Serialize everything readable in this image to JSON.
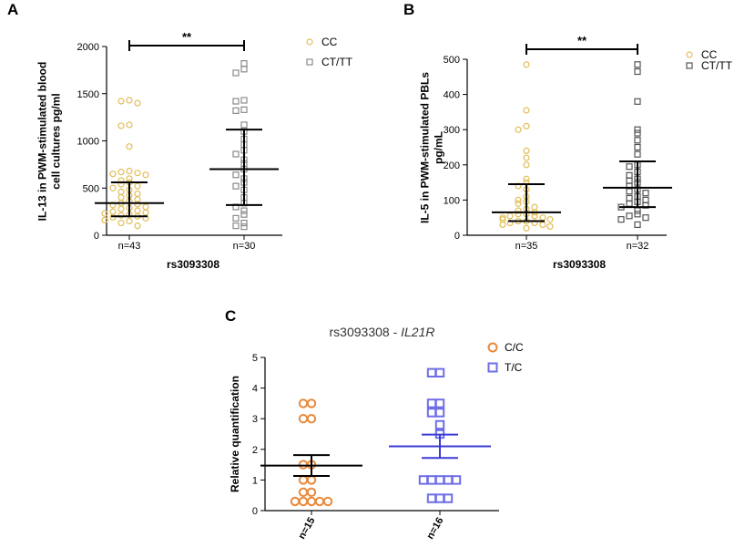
{
  "chart_data": [
    {
      "panel": "A",
      "type": "scatter",
      "title": "",
      "ylabel_lines": [
        "IL-13 in PWM-stimulated blood",
        "cell cultures pg/ml"
      ],
      "xlabel": "rs3093308",
      "ylim": [
        0,
        2000
      ],
      "yticks": [
        0,
        500,
        1000,
        1500,
        2000
      ],
      "categories": [
        "n=43",
        "n=30"
      ],
      "significance": "**",
      "series": [
        {
          "name": "CC",
          "color": "#e2bd56",
          "marker": "circle",
          "values": [
            1430,
            1420,
            1400,
            1170,
            1160,
            940,
            680,
            670,
            660,
            650,
            640,
            600,
            580,
            560,
            540,
            520,
            500,
            480,
            460,
            440,
            420,
            400,
            380,
            360,
            340,
            330,
            320,
            300,
            290,
            280,
            260,
            250,
            240,
            230,
            220,
            210,
            200,
            190,
            180,
            160,
            150,
            130,
            100
          ],
          "mean": 340,
          "err_low": 200,
          "err_high": 560
        },
        {
          "name": "CT/TT",
          "color": "#8a8a8a",
          "marker": "square",
          "values": [
            1820,
            1760,
            1720,
            1430,
            1420,
            1330,
            1320,
            1170,
            1100,
            1020,
            960,
            900,
            860,
            800,
            760,
            700,
            640,
            600,
            560,
            520,
            480,
            400,
            340,
            300,
            260,
            220,
            180,
            130,
            100,
            90
          ],
          "mean": 700,
          "err_low": 320,
          "err_high": 1120
        }
      ]
    },
    {
      "panel": "B",
      "type": "scatter",
      "title": "",
      "ylabel_lines": [
        "IL-5 in PWM-stimulated PBLs",
        "pg/mL"
      ],
      "xlabel": "rs3093308",
      "ylim": [
        0,
        500
      ],
      "yticks": [
        0,
        100,
        200,
        300,
        400,
        500
      ],
      "categories": [
        "n=35",
        "n=32"
      ],
      "significance": "**",
      "series": [
        {
          "name": "CC",
          "color": "#e2bd56",
          "marker": "circle",
          "values": [
            485,
            355,
            310,
            300,
            240,
            220,
            200,
            160,
            150,
            140,
            130,
            110,
            100,
            95,
            90,
            80,
            75,
            70,
            65,
            60,
            60,
            55,
            55,
            50,
            50,
            45,
            45,
            40,
            40,
            35,
            35,
            30,
            30,
            25,
            20
          ],
          "mean": 65,
          "err_low": 40,
          "err_high": 145
        },
        {
          "name": "CT/TT",
          "color": "#555555",
          "marker": "square",
          "values": [
            485,
            465,
            380,
            300,
            290,
            270,
            250,
            230,
            200,
            195,
            180,
            170,
            160,
            155,
            150,
            140,
            130,
            125,
            120,
            110,
            105,
            100,
            95,
            90,
            85,
            80,
            70,
            60,
            55,
            50,
            45,
            30
          ],
          "mean": 135,
          "err_low": 80,
          "err_high": 210
        }
      ]
    },
    {
      "panel": "C",
      "type": "scatter",
      "title_prefix": "rs3093308 - ",
      "title_gene": "IL21R",
      "ylabel_lines": [
        "Relative quantification"
      ],
      "xlabel": "",
      "ylim": [
        0,
        5
      ],
      "yticks": [
        0,
        1,
        2,
        3,
        4,
        5
      ],
      "categories": [
        "n=15",
        "n=16"
      ],
      "series": [
        {
          "name": "C/C",
          "color": "#e8893a",
          "marker": "circle",
          "values": [
            3.5,
            3.5,
            3.0,
            3.0,
            1.5,
            1.5,
            1.0,
            1.0,
            0.6,
            0.6,
            0.3,
            0.3,
            0.3,
            0.3,
            0.3
          ],
          "mean": 1.47,
          "err_low": 1.13,
          "err_high": 1.81
        },
        {
          "name": "T/C",
          "color": "#6d6ee6",
          "marker": "square",
          "values": [
            4.5,
            4.5,
            3.5,
            3.5,
            3.2,
            3.2,
            2.8,
            2.5,
            1.0,
            1.0,
            1.0,
            1.0,
            1.0,
            0.4,
            0.4,
            0.4
          ],
          "mean": 2.1,
          "err_low": 1.72,
          "err_high": 2.48
        }
      ]
    }
  ]
}
